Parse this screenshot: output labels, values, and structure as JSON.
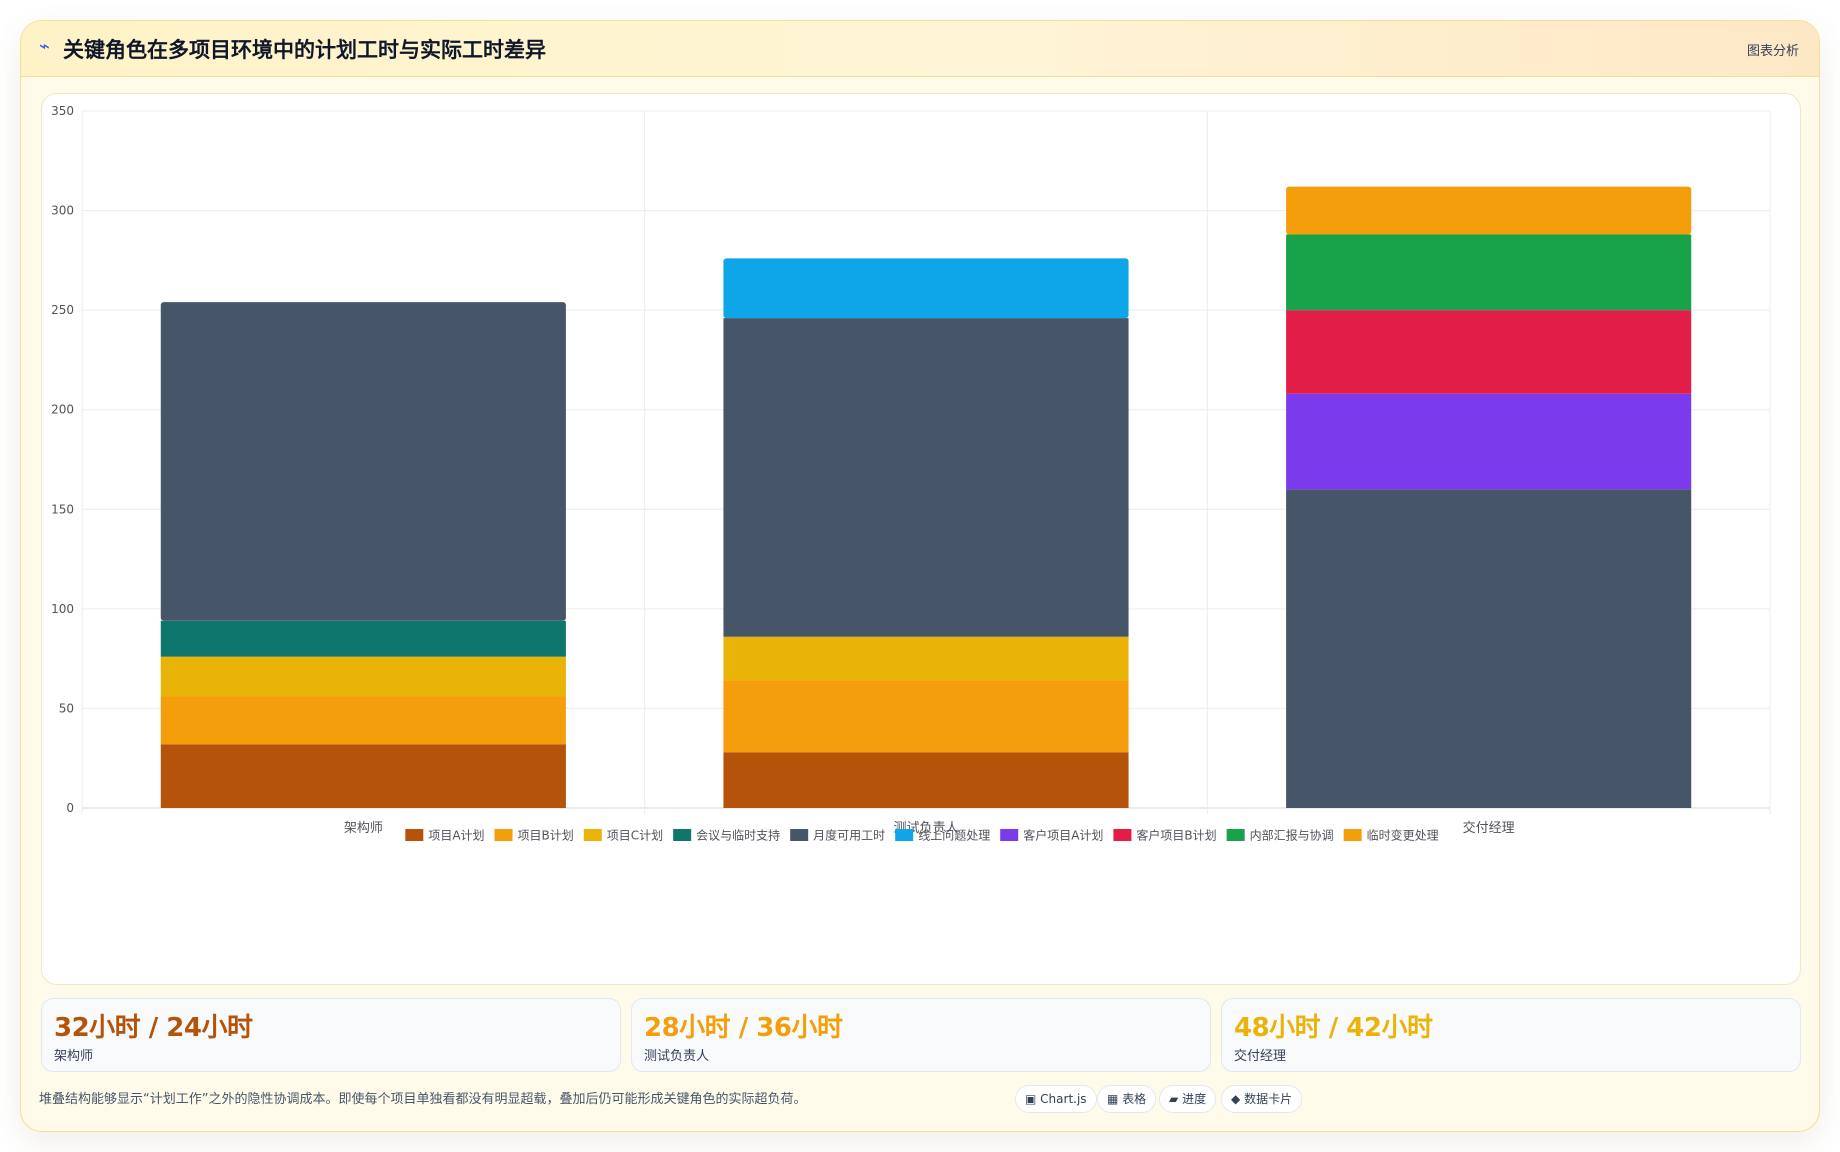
{
  "header": {
    "icon": "chart-icon",
    "icon_glyph": "⌁",
    "title": "关键角色在多项目环境中的计划工时与实际工时差异",
    "action_label": "图表分析"
  },
  "chart_data": {
    "type": "bar",
    "stacked": true,
    "categories": [
      "架构师",
      "测试负责人",
      "交付经理"
    ],
    "ylim": [
      0,
      350
    ],
    "yticks": [
      0,
      50,
      100,
      150,
      200,
      250,
      300,
      350
    ],
    "grid": true,
    "legend_position": "bottom",
    "series": [
      {
        "name": "项目A计划",
        "color": "#b45309",
        "values": [
          32,
          28,
          0
        ]
      },
      {
        "name": "项目B计划",
        "color": "#f59e0b",
        "values": [
          24,
          36,
          0
        ]
      },
      {
        "name": "项目C计划",
        "color": "#eab308",
        "values": [
          20,
          22,
          0
        ]
      },
      {
        "name": "会议与临时支持",
        "color": "#0f766e",
        "values": [
          18,
          0,
          0
        ]
      },
      {
        "name": "月度可用工时",
        "color": "#475569",
        "values": [
          160,
          160,
          160
        ]
      },
      {
        "name": "线上问题处理",
        "color": "#0ea5e9",
        "values": [
          0,
          30,
          0
        ]
      },
      {
        "name": "客户项目A计划",
        "color": "#7c3aed",
        "values": [
          0,
          0,
          48
        ]
      },
      {
        "name": "客户项目B计划",
        "color": "#e11d48",
        "values": [
          0,
          0,
          42
        ]
      },
      {
        "name": "内部汇报与协调",
        "color": "#16a34a",
        "values": [
          0,
          0,
          38
        ]
      },
      {
        "name": "临时变更处理",
        "color": "#f59e0b",
        "values": [
          0,
          0,
          24
        ]
      }
    ]
  },
  "kpis": [
    {
      "value": "32小时 / 24小时",
      "label": "架构师",
      "color": "#b45309"
    },
    {
      "value": "28小时 / 36小时",
      "label": "测试负责人",
      "color": "#f59e0b"
    },
    {
      "value": "48小时 / 42小时",
      "label": "交付经理",
      "color": "#eab308"
    }
  ],
  "footnote": "堆叠结构能够显示“计划工作”之外的隐性协调成本。即使每个项目单独看都没有明显超载，叠加后仍可能形成关键角色的实际超负荷。",
  "view_chips": [
    {
      "glyph": "▣",
      "label": "Chart.js",
      "icon": "chart-view-icon"
    },
    {
      "glyph": "▦",
      "label": "表格",
      "icon": "table-view-icon"
    },
    {
      "glyph": "▰",
      "label": "进度",
      "icon": "progress-view-icon"
    },
    {
      "glyph": "◆",
      "label": "数据卡片",
      "icon": "card-view-icon"
    }
  ]
}
